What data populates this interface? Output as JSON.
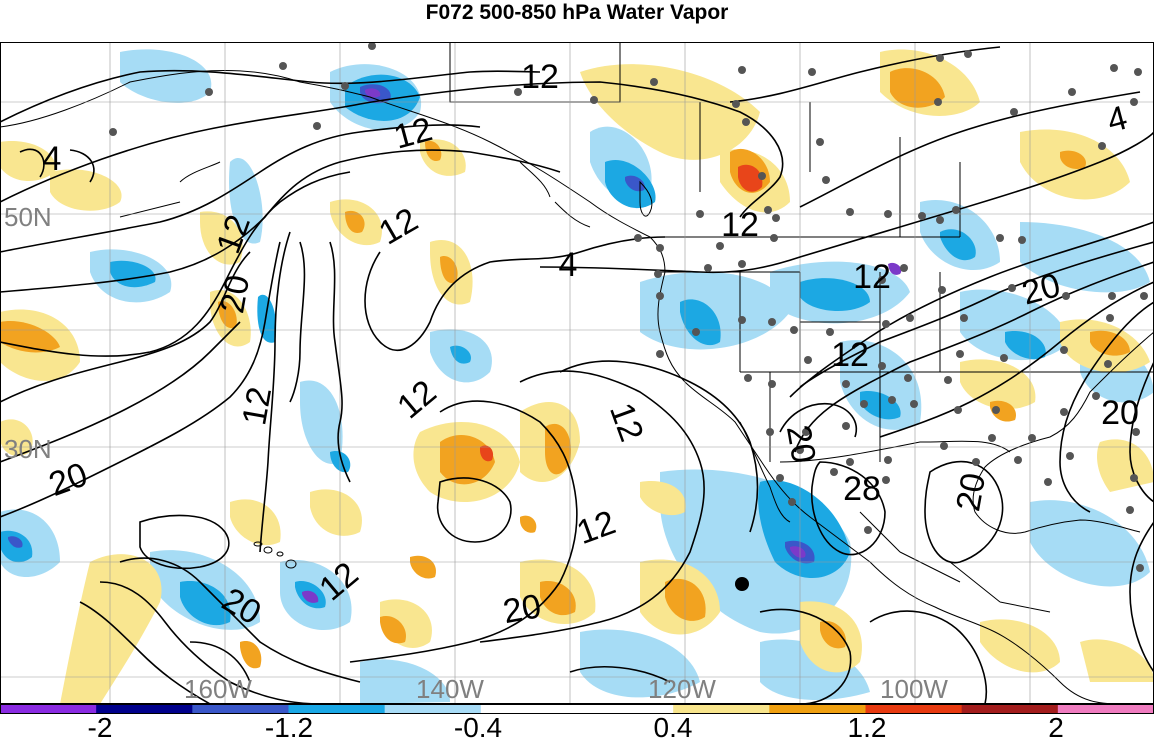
{
  "title": "F072 500-850 hPa Water Vapor",
  "latitude_labels": [
    "50N",
    "30N"
  ],
  "longitude_labels": [
    "160W",
    "140W",
    "120W",
    "100W"
  ],
  "contour_labels": [
    "4",
    "12",
    "12",
    "12",
    "12",
    "12",
    "20",
    "12",
    "12",
    "4",
    "4",
    "12",
    "20",
    "12",
    "20",
    "12",
    "20",
    "28",
    "20",
    "20",
    "20",
    "12",
    "12",
    "20"
  ],
  "colorbar": {
    "tick_labels": [
      "-2",
      "-1.2",
      "-0.4",
      "0.4",
      "1.2",
      "2"
    ],
    "colors": [
      "#8a2be2",
      "#00008b",
      "#3a57c9",
      "#1aa8e6",
      "#a8dcf7",
      "#ffffff",
      "#ffffff",
      "#f8e58c",
      "#f0a010",
      "#e83a10",
      "#a31c1c",
      "#f07cc0"
    ]
  },
  "fill_colors": {
    "light_blue": "#a6dcf5",
    "blue": "#1ca8e3",
    "dark_blue": "#3a57c9",
    "purple": "#7b3ac9",
    "yellow": "#f9e690",
    "orange": "#f2a320",
    "red": "#e8451a"
  }
}
